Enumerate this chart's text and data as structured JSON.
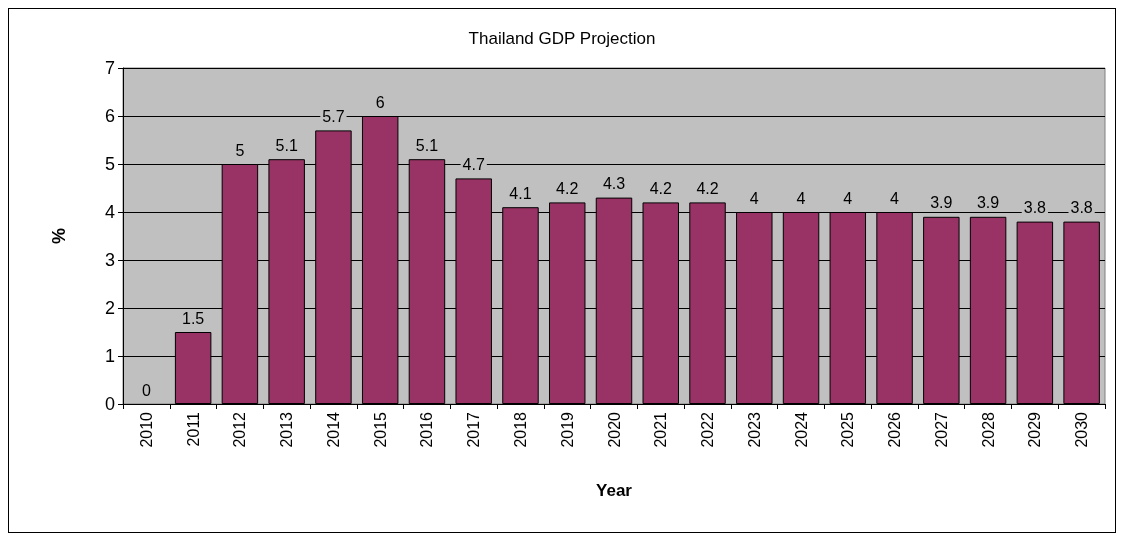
{
  "chart_data": {
    "type": "bar",
    "title": "Thailand GDP Projection",
    "xlabel": "Year",
    "ylabel": "%",
    "categories": [
      "2010",
      "2011",
      "2012",
      "2013",
      "2014",
      "2015",
      "2016",
      "2017",
      "2018",
      "2019",
      "2020",
      "2021",
      "2022",
      "2023",
      "2024",
      "2025",
      "2026",
      "2027",
      "2028",
      "2029",
      "2030"
    ],
    "values": [
      0,
      1.5,
      5,
      5.1,
      5.7,
      6,
      5.1,
      4.7,
      4.1,
      4.2,
      4.3,
      4.2,
      4.2,
      4,
      4,
      4,
      4,
      3.9,
      3.9,
      3.8,
      3.8
    ],
    "color": "#993366",
    "ylim": [
      0,
      7
    ],
    "yticks": [
      0,
      1,
      2,
      3,
      4,
      5,
      6,
      7
    ],
    "grid": "y",
    "data_labels": true
  }
}
